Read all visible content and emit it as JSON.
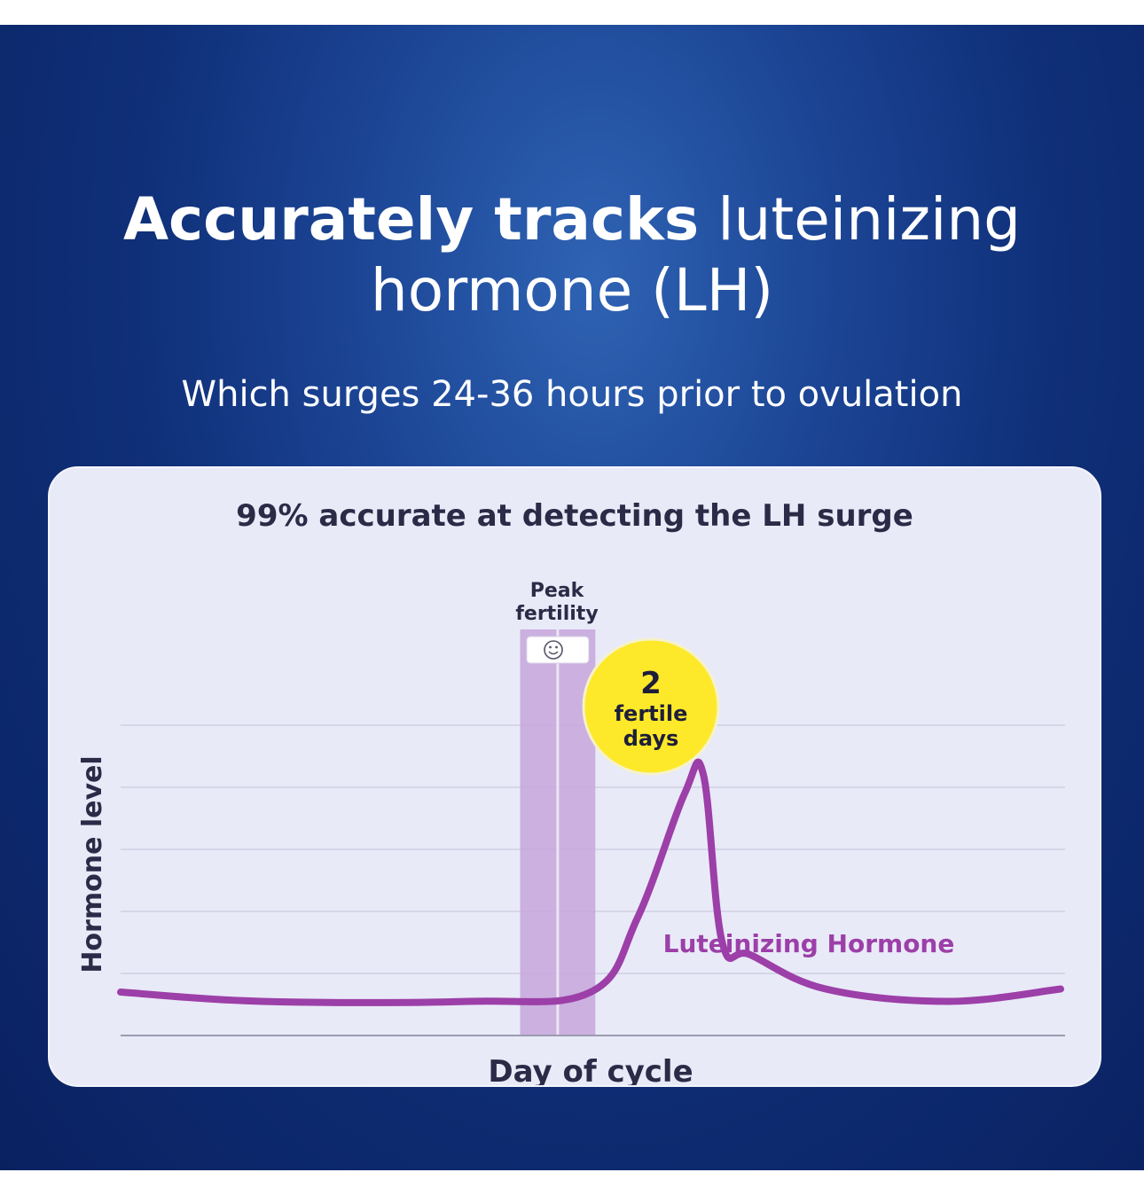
{
  "header": {
    "title_bold": "Accurately tracks",
    "title_rest": "luteinizing hormone (LH)",
    "subtitle": "Which surges 24-36 hours prior to ovulation"
  },
  "card": {
    "title": "99% accurate at detecting the LH surge"
  },
  "peak": {
    "label_line1": "Peak",
    "label_line2": "fertility",
    "icon": "smiley-face-icon"
  },
  "badge": {
    "number": "2",
    "line1": "fertile",
    "line2": "days",
    "color": "#fde929"
  },
  "colors": {
    "series": "#9c3fa8",
    "band": "#c6a6dc",
    "background": "#0f2f78",
    "card": "#e9eaf8"
  },
  "chart_data": {
    "type": "line",
    "xlabel": "Day of cycle",
    "ylabel": "Hormone level",
    "xlim": [
      0,
      100
    ],
    "ylim": [
      0,
      100
    ],
    "grid": true,
    "series": [
      {
        "name": "Luteinizing Hormone",
        "x": [
          0,
          15,
          37,
          50,
          55,
          60,
          62,
          64,
          67,
          75,
          88,
          100
        ],
        "y": [
          14,
          11,
          11,
          14,
          38,
          78,
          84,
          30,
          26,
          15,
          11,
          15
        ]
      }
    ],
    "highlight_band": {
      "x_start": 42.5,
      "x_end": 50.5,
      "label": "Peak fertility"
    }
  }
}
